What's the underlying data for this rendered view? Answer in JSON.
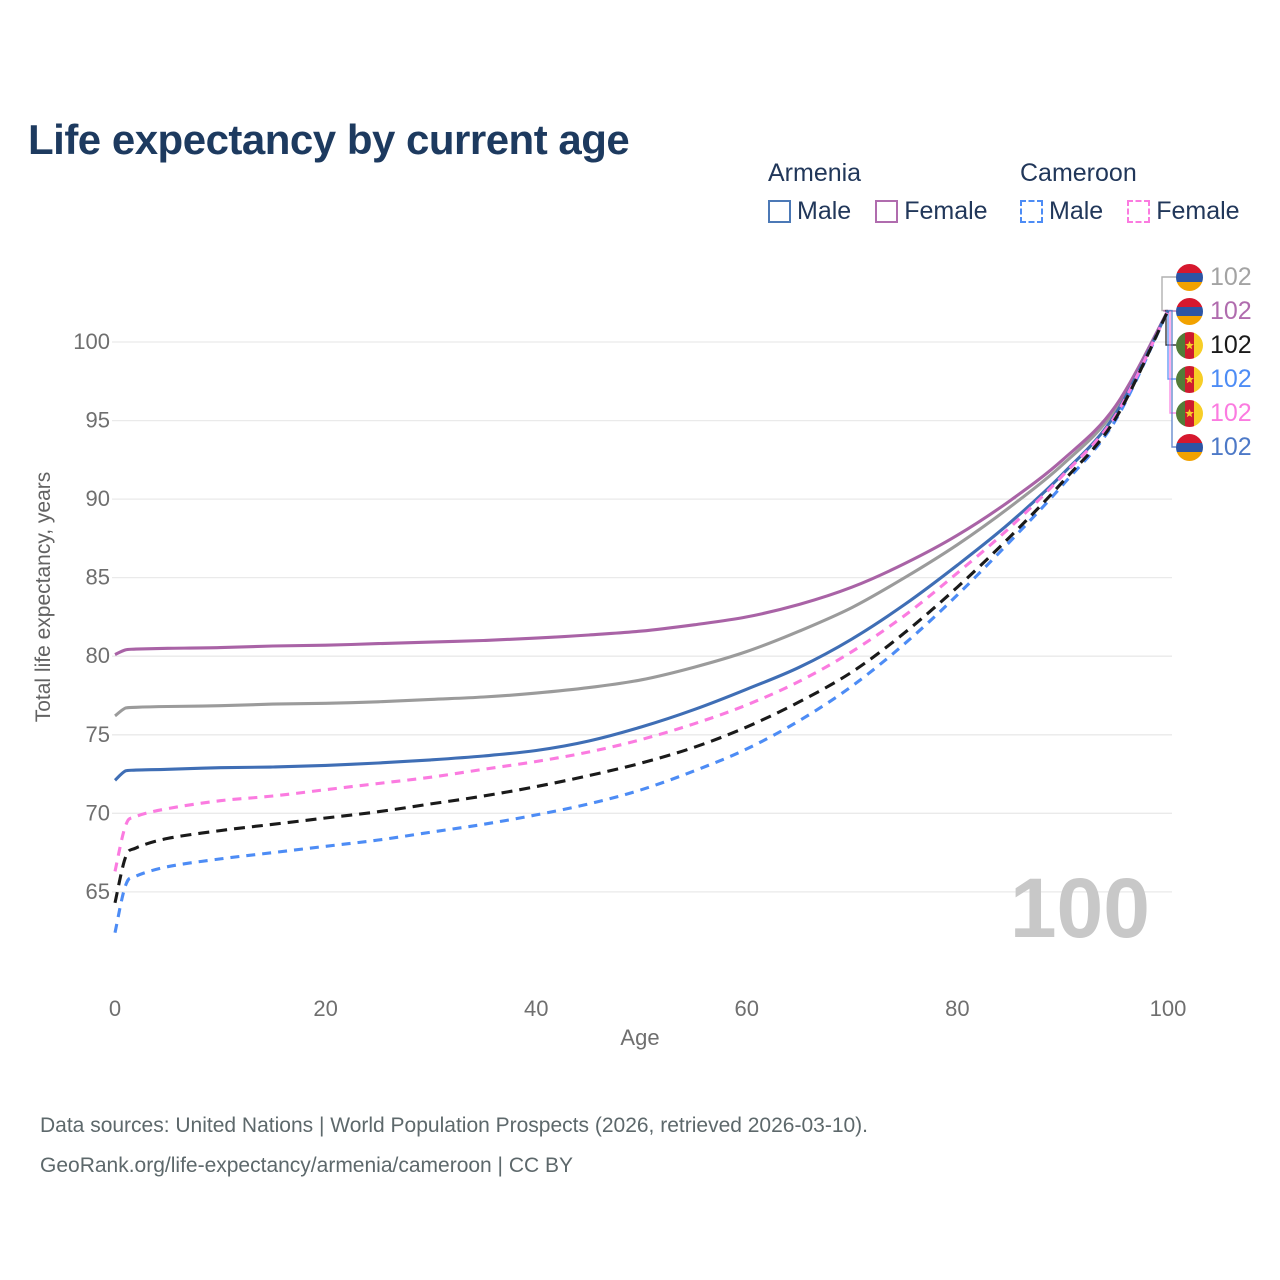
{
  "title": "Life expectancy by current age",
  "legend": {
    "groups": [
      {
        "country": "Armenia",
        "line_style": "solid",
        "underline_color": "#9e9e9e",
        "items": [
          {
            "label": "Male",
            "color": "#4c79b6"
          },
          {
            "label": "Female",
            "color": "#b06cae"
          }
        ]
      },
      {
        "country": "Cameroon",
        "line_style": "dashed",
        "underline_color": "#1a1a1a",
        "items": [
          {
            "label": "Male",
            "color": "#4d8cf5"
          },
          {
            "label": "Female",
            "color": "#fb7be0"
          }
        ]
      }
    ]
  },
  "chart_data": {
    "type": "line",
    "title": "Life expectancy by current age",
    "xlabel": "Age",
    "ylabel": "Total life expectancy, years",
    "x_ticks": [
      0,
      20,
      40,
      60,
      80,
      100
    ],
    "y_ticks": [
      65,
      70,
      75,
      80,
      85,
      90,
      95,
      100
    ],
    "xlim": [
      0,
      100
    ],
    "ylim": [
      59.5,
      103.5
    ],
    "grid": true,
    "legend_position": "top-right",
    "x": [
      0,
      1,
      2,
      5,
      10,
      15,
      20,
      25,
      30,
      35,
      40,
      45,
      50,
      55,
      60,
      65,
      70,
      75,
      80,
      85,
      90,
      95,
      100
    ],
    "series": [
      {
        "name": "Armenia all",
        "country": "Armenia",
        "flag": "armenia",
        "color": "#9b9b9b",
        "dash": "solid",
        "values": [
          76.2,
          76.7,
          76.75,
          76.8,
          76.85,
          76.95,
          77.0,
          77.1,
          77.25,
          77.4,
          77.65,
          78.0,
          78.5,
          79.3,
          80.3,
          81.6,
          83.1,
          85.0,
          87.1,
          89.5,
          92.2,
          95.7,
          102
        ]
      },
      {
        "name": "Armenia Female",
        "country": "Armenia",
        "flag": "armenia",
        "color": "#a963a6",
        "dash": "solid",
        "values": [
          80.1,
          80.4,
          80.45,
          80.5,
          80.55,
          80.65,
          80.7,
          80.8,
          80.9,
          81.0,
          81.15,
          81.35,
          81.6,
          82.0,
          82.5,
          83.3,
          84.4,
          85.9,
          87.7,
          89.9,
          92.5,
          95.9,
          102
        ]
      },
      {
        "name": "Armenia Male",
        "country": "Armenia",
        "flag": "armenia",
        "color": "#3f6eb5",
        "dash": "solid",
        "values": [
          72.1,
          72.7,
          72.75,
          72.8,
          72.9,
          72.95,
          73.05,
          73.2,
          73.4,
          73.65,
          74.0,
          74.6,
          75.5,
          76.6,
          77.9,
          79.3,
          81.1,
          83.3,
          85.8,
          88.5,
          91.6,
          95.4,
          102
        ]
      },
      {
        "name": "Cameroon Male",
        "country": "Cameroon",
        "flag": "cameroon",
        "color": "#4d8cf5",
        "dash": "dashed",
        "values": [
          62.4,
          65.4,
          66.0,
          66.6,
          67.1,
          67.5,
          67.9,
          68.3,
          68.8,
          69.3,
          69.9,
          70.6,
          71.5,
          72.7,
          74.1,
          75.9,
          78.1,
          80.8,
          83.9,
          87.3,
          90.9,
          95.0,
          102
        ]
      },
      {
        "name": "Cameroon Female",
        "country": "Cameroon",
        "flag": "cameroon",
        "color": "#fb7be0",
        "dash": "dashed",
        "values": [
          66.3,
          69.2,
          69.8,
          70.3,
          70.8,
          71.1,
          71.5,
          71.9,
          72.3,
          72.8,
          73.3,
          73.9,
          74.7,
          75.7,
          76.9,
          78.4,
          80.3,
          82.6,
          85.3,
          88.2,
          91.5,
          95.3,
          102
        ]
      },
      {
        "name": "Cameroon all",
        "country": "Cameroon",
        "flag": "cameroon",
        "color": "#1a1a1a",
        "dash": "dashed",
        "values": [
          64.3,
          67.2,
          67.8,
          68.4,
          68.9,
          69.3,
          69.7,
          70.1,
          70.6,
          71.1,
          71.7,
          72.4,
          73.2,
          74.2,
          75.5,
          77.1,
          79.0,
          81.5,
          84.4,
          87.6,
          91.1,
          95.1,
          102
        ]
      }
    ]
  },
  "end_labels": [
    {
      "flag": "armenia",
      "text": "102",
      "color": "#a3a3a3"
    },
    {
      "flag": "armenia",
      "text": "102",
      "color": "#b06cae"
    },
    {
      "flag": "cameroon",
      "text": "102",
      "color": "#1a1a1a"
    },
    {
      "flag": "cameroon",
      "text": "102",
      "color": "#4d8cf5"
    },
    {
      "flag": "cameroon",
      "text": "102",
      "color": "#fb7be0"
    },
    {
      "flag": "armenia",
      "text": "102",
      "color": "#4d79c7"
    }
  ],
  "watermark": "100",
  "footer": {
    "line1": "Data sources: United Nations | World Population Prospects (2026, retrieved 2026-03-10).",
    "line2": "GeoRank.org/life-expectancy/armenia/cameroon | CC BY"
  },
  "colors": {
    "background": "#ffffff",
    "grid": "#eaeaea",
    "axis_text": "#6f6f6f",
    "title": "#1d3a5f",
    "legend_text": "#21375a",
    "footer_text": "#5d686b",
    "watermark": "#c8c8c8"
  },
  "flags": {
    "armenia": {
      "bands": [
        "#d6182e",
        "#2d55a5",
        "#f2a200"
      ]
    },
    "cameroon": {
      "bands": [
        "#527c38",
        "#ce1b2f",
        "#f7ce27"
      ],
      "star": "#f7ce27"
    }
  }
}
